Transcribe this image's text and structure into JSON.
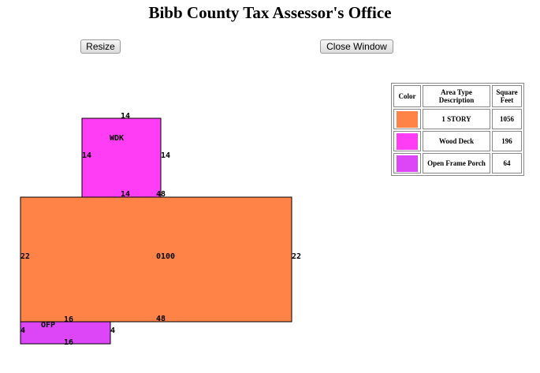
{
  "page": {
    "title": "Bibb County Tax Assessor's Office"
  },
  "buttons": {
    "resize": "Resize",
    "close": "Close Window"
  },
  "legend": {
    "headers": {
      "color": "Color",
      "description": "Area Type Description",
      "square_feet": "Square Feet"
    },
    "rows": [
      {
        "color": "#ff8247",
        "description": "1 STORY",
        "square_feet": "1056"
      },
      {
        "color": "#ff3df5",
        "description": "Wood Deck",
        "square_feet": "196"
      },
      {
        "color": "#dd46f7",
        "description": "Open Frame Porch",
        "square_feet": "64"
      }
    ]
  },
  "sketch": {
    "main": {
      "code": "0100",
      "fill": "#ff8247",
      "left_dim": "22",
      "right_dim": "22",
      "top_dim": "48",
      "bottom_dim": "48"
    },
    "deck": {
      "code": "WDK",
      "fill": "#ff3df5",
      "top_dim": "14",
      "left_dim": "14",
      "right_dim": "14",
      "bottom_dim": "14"
    },
    "porch": {
      "code": "OFP",
      "fill": "#dd46f7",
      "top_dim": "16",
      "bottom_dim": "16",
      "left_dim": "4",
      "right_dim": "4"
    }
  }
}
